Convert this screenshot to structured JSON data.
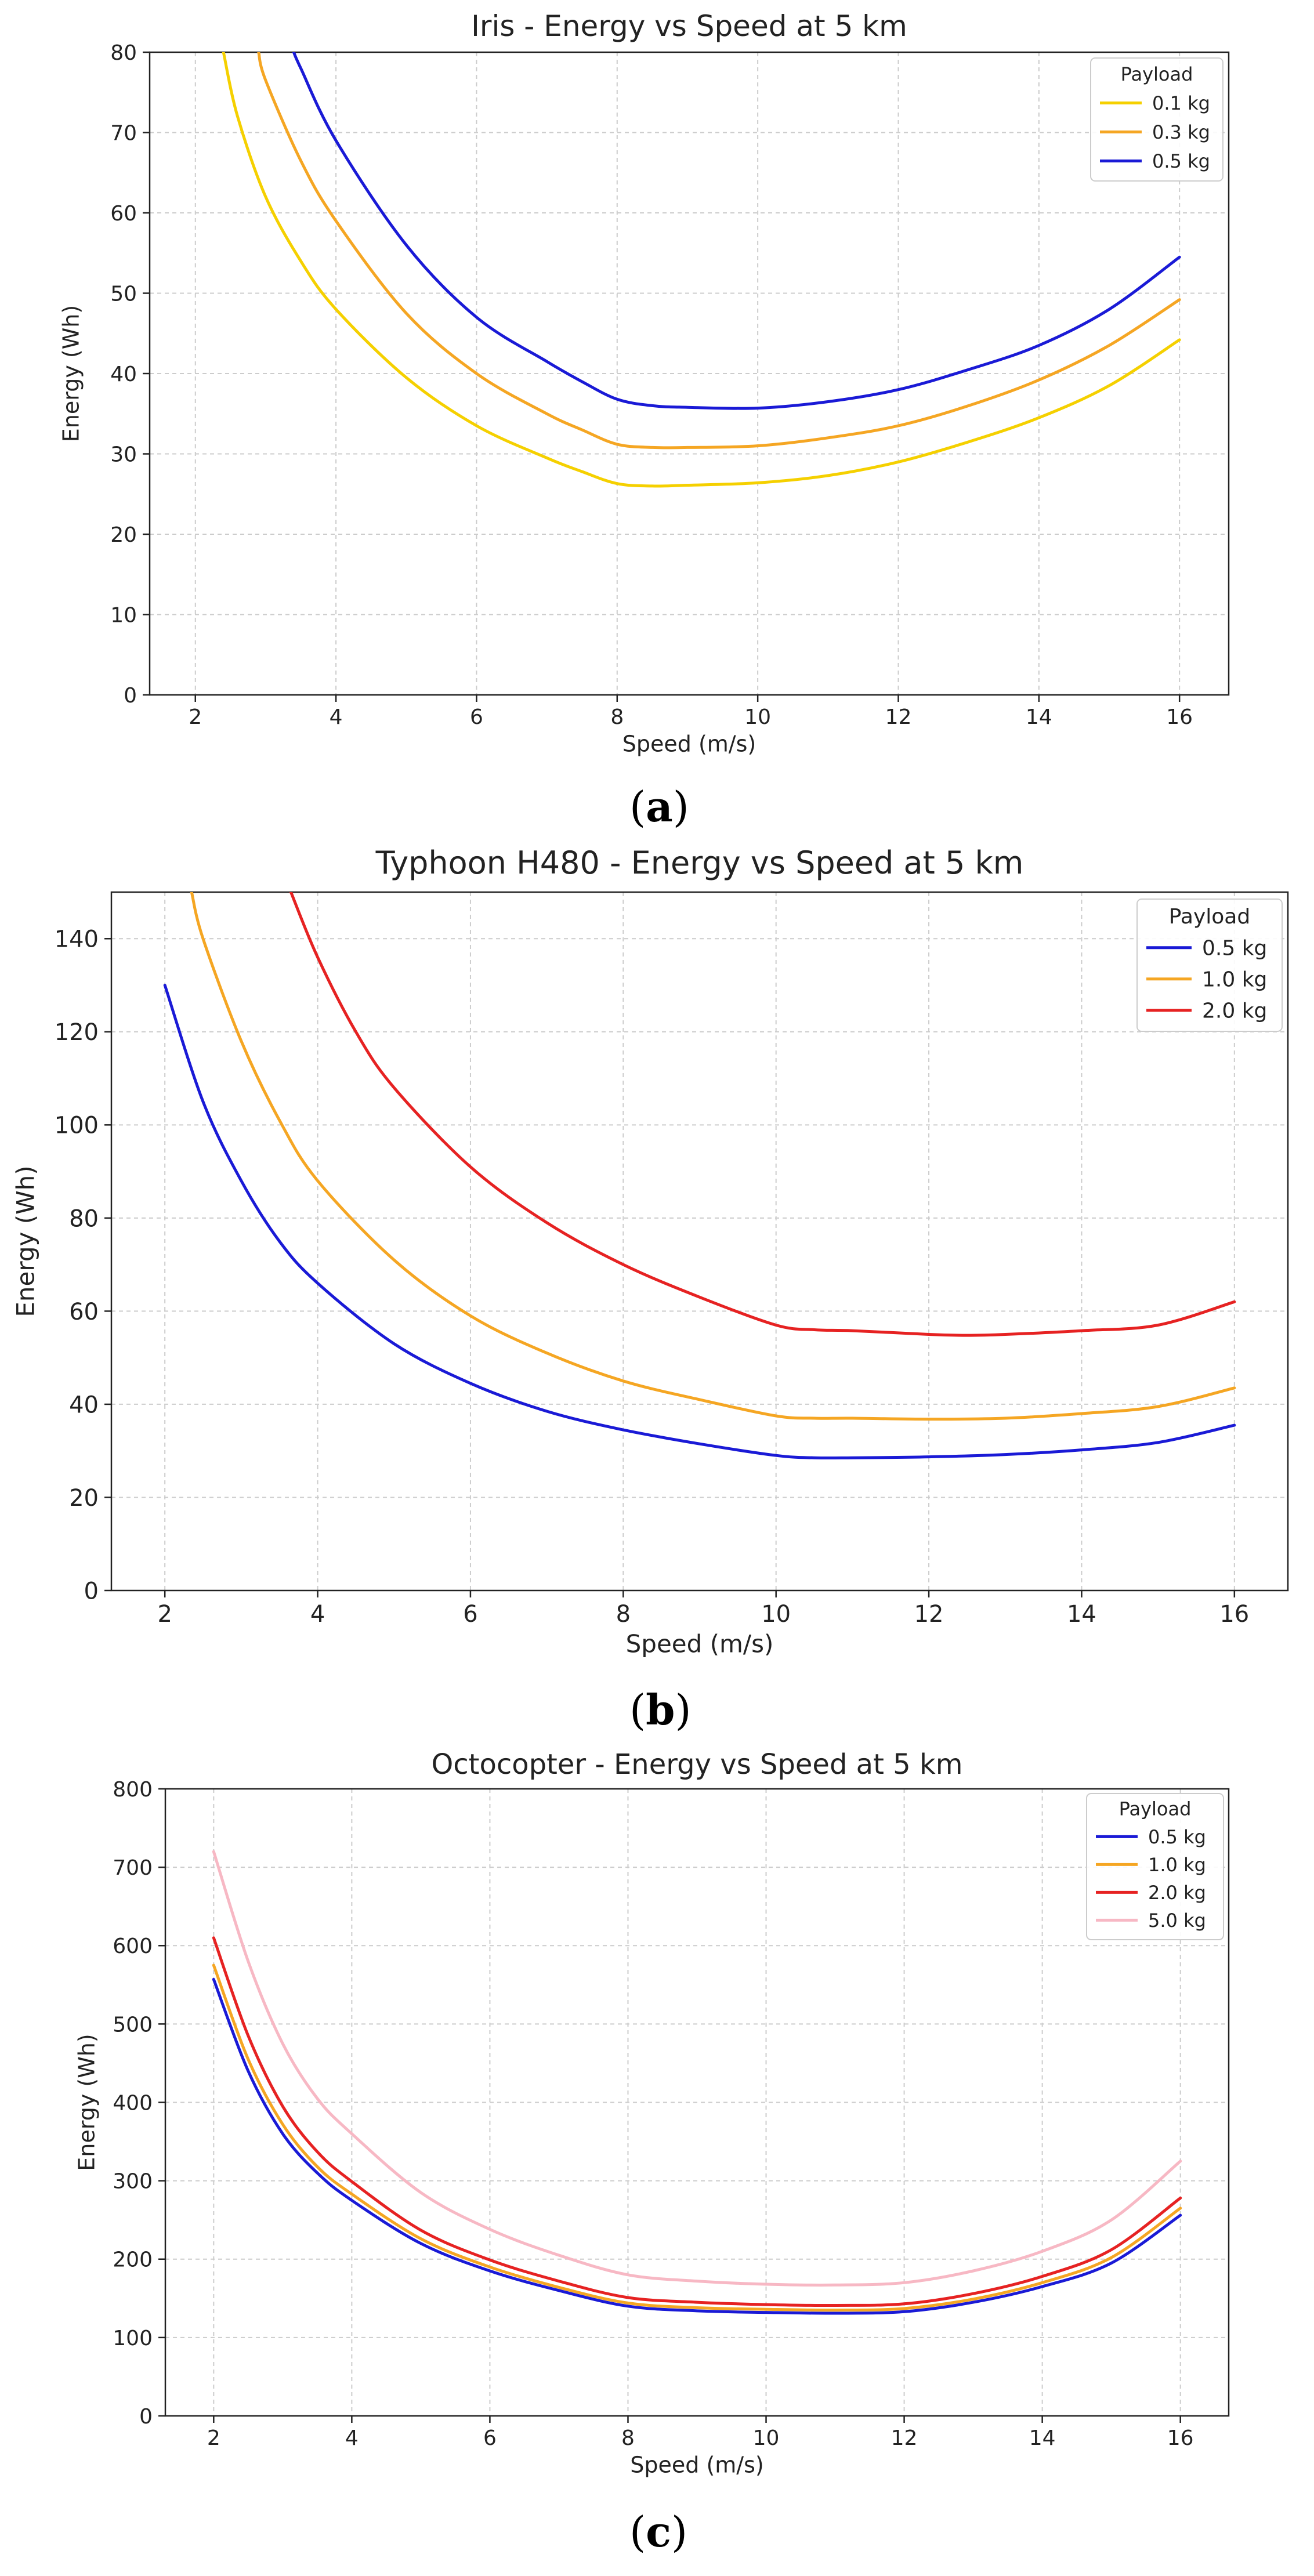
{
  "panels": [
    {
      "label_open": "(",
      "label_letter": "a",
      "label_close": ")"
    },
    {
      "label_open": "(",
      "label_letter": "b",
      "label_close": ")"
    },
    {
      "label_open": "(",
      "label_letter": "c",
      "label_close": ")"
    }
  ],
  "chart_data": [
    {
      "type": "line",
      "title": "Iris - Energy vs Speed at 5 km",
      "xlabel": "Speed (m/s)",
      "ylabel": "Energy (Wh)",
      "xlim": [
        1.35,
        16.7
      ],
      "ylim": [
        0,
        80
      ],
      "xticks": [
        2,
        4,
        6,
        8,
        10,
        12,
        14,
        16
      ],
      "yticks": [
        0,
        10,
        20,
        30,
        40,
        50,
        60,
        70,
        80
      ],
      "grid": true,
      "legend_title": "Payload",
      "legend_position": "top-right",
      "series": [
        {
          "name": "0.1 kg",
          "color": "#f5d000",
          "x": [
            2.4,
            2.6,
            3.0,
            3.5,
            4.0,
            5.0,
            6.0,
            7.0,
            7.5,
            8.0,
            8.5,
            9.0,
            10.0,
            11.0,
            12.0,
            13.0,
            14.0,
            15.0,
            16.0
          ],
          "y": [
            80,
            72,
            62,
            54,
            48,
            39.5,
            33.5,
            29.5,
            27.8,
            26.3,
            26.0,
            26.1,
            26.4,
            27.3,
            29,
            31.5,
            34.5,
            38.5,
            44.2
          ]
        },
        {
          "name": "0.3 kg",
          "color": "#f5a623",
          "x": [
            2.9,
            3.0,
            3.5,
            4.0,
            5.0,
            6.0,
            7.0,
            7.5,
            8.0,
            8.5,
            9.0,
            10.0,
            11.0,
            12.0,
            13.0,
            14.0,
            15.0,
            16.0
          ],
          "y": [
            80,
            76.5,
            66.5,
            59,
            47.5,
            40,
            35,
            33,
            31.2,
            30.8,
            30.8,
            31,
            32,
            33.5,
            36,
            39.2,
            43.5,
            49.2
          ]
        },
        {
          "name": "0.5 kg",
          "color": "#1a1ad6",
          "x": [
            3.4,
            3.5,
            4.0,
            5.0,
            6.0,
            7.0,
            7.5,
            8.0,
            8.5,
            9.0,
            10.0,
            11.0,
            12.0,
            13.0,
            14.0,
            15.0,
            16.0
          ],
          "y": [
            80,
            78,
            69,
            56,
            47,
            41.5,
            39,
            36.8,
            36,
            35.8,
            35.7,
            36.5,
            38,
            40.5,
            43.5,
            48,
            54.5
          ]
        }
      ]
    },
    {
      "type": "line",
      "title": "Typhoon H480 - Energy vs Speed at 5 km",
      "xlabel": "Speed (m/s)",
      "ylabel": "Energy (Wh)",
      "xlim": [
        1.3,
        16.7
      ],
      "ylim": [
        0,
        150
      ],
      "xticks": [
        2,
        4,
        6,
        8,
        10,
        12,
        14,
        16
      ],
      "yticks": [
        0,
        20,
        40,
        60,
        80,
        100,
        120,
        140
      ],
      "grid": true,
      "legend_title": "Payload",
      "legend_position": "top-right",
      "series": [
        {
          "name": "0.5 kg",
          "color": "#1a1ad6",
          "x": [
            2.0,
            2.5,
            3.0,
            3.5,
            4.0,
            5.0,
            6.0,
            7.0,
            8.0,
            9.0,
            10.0,
            10.5,
            11.0,
            12.0,
            13.0,
            14.0,
            15.0,
            16.0
          ],
          "y": [
            130,
            105,
            88,
            75,
            66,
            53,
            44.5,
            38.5,
            34.5,
            31.5,
            29,
            28.5,
            28.5,
            28.7,
            29.2,
            30.2,
            31.8,
            35.5
          ]
        },
        {
          "name": "1.0 kg",
          "color": "#f5a623",
          "x": [
            2.35,
            2.5,
            3.0,
            3.5,
            4.0,
            5.0,
            6.0,
            7.0,
            8.0,
            9.0,
            10.0,
            10.5,
            11.0,
            12.0,
            13.0,
            14.0,
            15.0,
            16.0
          ],
          "y": [
            150,
            140,
            118,
            101,
            88,
            71,
            59,
            51,
            45,
            41,
            37.5,
            37,
            37,
            36.8,
            37,
            38,
            39.5,
            43.5
          ]
        },
        {
          "name": "2.0 kg",
          "color": "#e62222",
          "x": [
            3.65,
            4.0,
            4.5,
            5.0,
            6.0,
            7.0,
            8.0,
            9.0,
            10.0,
            10.5,
            11.0,
            12.0,
            12.5,
            13.0,
            14.0,
            15.0,
            16.0
          ],
          "y": [
            150,
            136,
            120,
            108,
            91,
            79,
            70,
            63,
            57,
            56,
            55.8,
            55,
            54.8,
            55,
            55.8,
            57,
            62
          ]
        }
      ]
    },
    {
      "type": "line",
      "title": "Octocopter - Energy vs Speed at 5 km",
      "xlabel": "Speed (m/s)",
      "ylabel": "Energy (Wh)",
      "xlim": [
        1.3,
        16.7
      ],
      "ylim": [
        0,
        800
      ],
      "xticks": [
        2,
        4,
        6,
        8,
        10,
        12,
        14,
        16
      ],
      "yticks": [
        0,
        100,
        200,
        300,
        400,
        500,
        600,
        700,
        800
      ],
      "grid": true,
      "legend_title": "Payload",
      "legend_position": "top-right",
      "series": [
        {
          "name": "0.5 kg",
          "color": "#1a1ad6",
          "x": [
            2.0,
            2.5,
            3.0,
            3.5,
            4.0,
            5.0,
            6.0,
            7.0,
            8.0,
            9.0,
            10.0,
            11.0,
            12.0,
            13.0,
            14.0,
            15.0,
            16.0
          ],
          "y": [
            557,
            440,
            360,
            310,
            275,
            220,
            185,
            160,
            140,
            134,
            132,
            131,
            133,
            145,
            165,
            195,
            256
          ]
        },
        {
          "name": "1.0 kg",
          "color": "#f5a623",
          "x": [
            2.0,
            2.5,
            3.0,
            3.5,
            4.0,
            5.0,
            6.0,
            7.0,
            8.0,
            9.0,
            10.0,
            11.0,
            12.0,
            13.0,
            14.0,
            15.0,
            16.0
          ],
          "y": [
            575,
            455,
            372,
            318,
            283,
            226,
            190,
            164,
            144,
            138,
            136,
            135,
            137,
            149,
            170,
            202,
            265
          ]
        },
        {
          "name": "2.0 kg",
          "color": "#e62222",
          "x": [
            2.0,
            2.5,
            3.0,
            3.5,
            4.0,
            5.0,
            6.0,
            7.0,
            8.0,
            9.0,
            10.0,
            11.0,
            12.0,
            13.0,
            14.0,
            15.0,
            16.0
          ],
          "y": [
            610,
            485,
            395,
            337,
            299,
            237,
            199,
            172,
            151,
            145,
            142,
            141,
            143,
            156,
            178,
            212,
            278
          ]
        },
        {
          "name": "5.0 kg",
          "color": "#f7b8c4",
          "x": [
            2.0,
            2.5,
            3.0,
            3.5,
            4.0,
            5.0,
            6.0,
            7.0,
            8.0,
            9.0,
            10.0,
            11.0,
            12.0,
            13.0,
            14.0,
            15.0,
            16.0
          ],
          "y": [
            720,
            580,
            475,
            405,
            360,
            285,
            238,
            205,
            180,
            172,
            168,
            167,
            170,
            185,
            210,
            250,
            325
          ]
        }
      ]
    }
  ]
}
